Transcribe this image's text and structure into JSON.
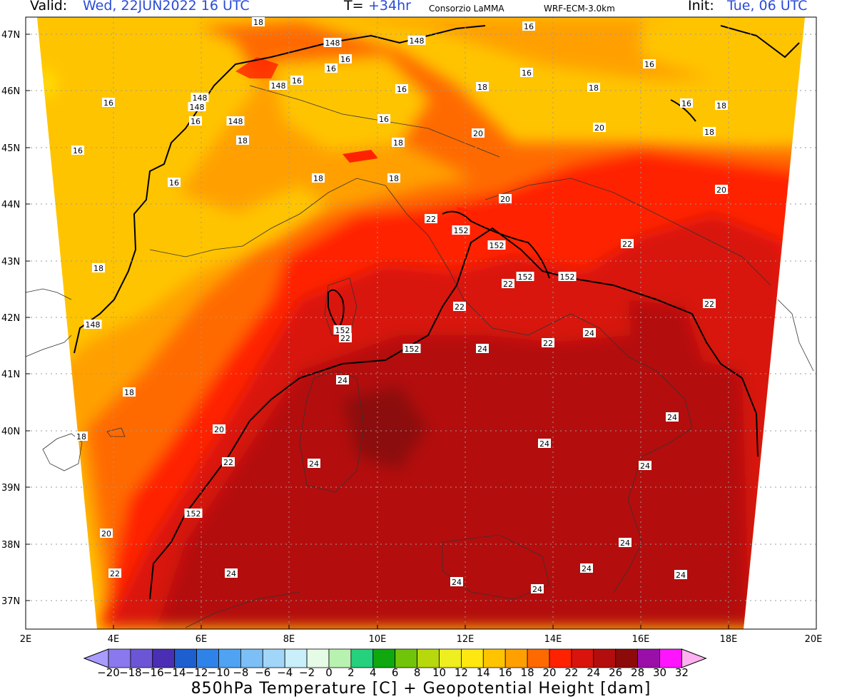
{
  "header": {
    "valid_label": "Valid:",
    "valid_value": "Wed, 22JUN2022  16 UTC",
    "t_label": "T=",
    "t_value": "+34hr",
    "source": "Consorzio LaMMA",
    "model": "WRF-ECM-3.0km",
    "init_label": "Init:",
    "init_value": "Tue, 06 UTC"
  },
  "axes": {
    "lat_labels": [
      "47N",
      "46N",
      "45N",
      "44N",
      "43N",
      "42N",
      "41N",
      "40N",
      "39N",
      "38N",
      "37N"
    ],
    "lon_labels": [
      "2E",
      "4E",
      "6E",
      "8E",
      "10E",
      "12E",
      "14E",
      "16E",
      "18E",
      "20E"
    ]
  },
  "colorbar": {
    "colors": [
      "#a99cff",
      "#8a78ee",
      "#6d56d6",
      "#4a2fb5",
      "#1d5fcf",
      "#2f83e8",
      "#4fa3f2",
      "#7cbff6",
      "#a2d6f8",
      "#c9effa",
      "#e6fbe6",
      "#b8f2b0",
      "#26d07c",
      "#0fa80f",
      "#71c40a",
      "#b7d80c",
      "#eeee20",
      "#ffe810",
      "#ffc400",
      "#ffa000",
      "#ff6a00",
      "#ff2200",
      "#d8140c",
      "#b40d0d",
      "#8c0a0a",
      "#9a0fa8",
      "#ff14ff",
      "#ffb0f0"
    ],
    "labels": [
      "−20",
      "−18",
      "−16",
      "−14",
      "−12",
      "−10",
      "−8",
      "−6",
      "−4",
      "−2",
      "0",
      "2",
      "4",
      "6",
      "8",
      "10",
      "12",
      "14",
      "16",
      "18",
      "20",
      "22",
      "24",
      "26",
      "28",
      "30",
      "32"
    ],
    "title": "850hPa Temperature [C] + Geopotential Height [dam]"
  },
  "contour_labels": [
    "18",
    "148",
    "16",
    "148",
    "16",
    "16",
    "16",
    "16",
    "148",
    "16",
    "16",
    "148",
    "18",
    "16",
    "18",
    "16",
    "18",
    "148",
    "16",
    "148",
    "18",
    "16",
    "18",
    "18",
    "16",
    "16",
    "18",
    "18",
    "20",
    "20",
    "20",
    "152",
    "152",
    "20",
    "22",
    "152",
    "152",
    "22",
    "18",
    "22",
    "22",
    "152",
    "22",
    "148",
    "22",
    "152",
    "24",
    "24",
    "22",
    "24",
    "18",
    "20",
    "24",
    "18",
    "22",
    "24",
    "24",
    "24",
    "152",
    "20",
    "24",
    "22",
    "24",
    "24",
    "24",
    "24",
    "24"
  ]
}
